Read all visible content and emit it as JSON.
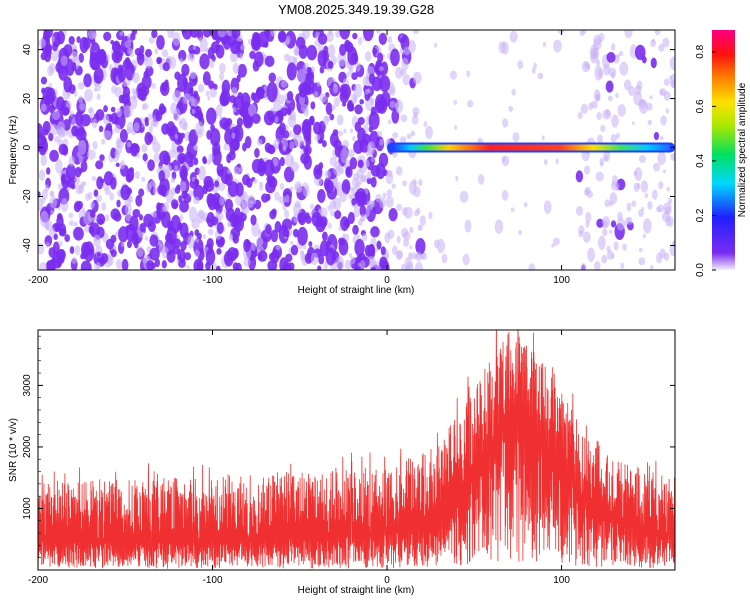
{
  "title": "YM08.2025.349.19.39.G28",
  "colors": {
    "scatter_purple": "#7a2cf0",
    "scatter_light": "#c9b0f5",
    "snr_line": "#f03030"
  },
  "chart_data": [
    {
      "type": "heatmap",
      "name": "spectrogram",
      "xlabel": "Height of straight line (km)",
      "ylabel": "Frequency (Hz)",
      "xlim": [
        -200,
        165
      ],
      "ylim": [
        -50,
        48
      ],
      "xticks": [
        -200,
        -100,
        0,
        100
      ],
      "yticks": [
        -40,
        -20,
        0,
        20,
        40
      ],
      "signal_band": {
        "x_start": 0,
        "x_end": 165,
        "frequency_hz": 0
      },
      "colorbar": {
        "label": "Normalized spectral amplitude",
        "range": [
          0.0,
          0.88
        ],
        "ticks": [
          0.0,
          0.2,
          0.4,
          0.6,
          0.8
        ],
        "colormap": "rainbow (purple-blue-cyan-green-yellow-red-magenta)"
      }
    },
    {
      "type": "line",
      "name": "snr",
      "xlabel": "Height of straight line (km)",
      "ylabel": "SNR (10 * v/v)",
      "xlim": [
        -200,
        165
      ],
      "ylim": [
        0,
        3900
      ],
      "xticks": [
        -200,
        -100,
        0,
        100
      ],
      "yticks": [
        1000,
        2000,
        3000
      ],
      "envelope": {
        "x": [
          -200,
          -150,
          -100,
          -50,
          0,
          20,
          40,
          55,
          70,
          80,
          95,
          110,
          130,
          150,
          165
        ],
        "mean": [
          450,
          450,
          470,
          520,
          600,
          700,
          1100,
          1800,
          2500,
          2400,
          1800,
          1200,
          800,
          620,
          560
        ],
        "max": [
          1450,
          1500,
          1550,
          1600,
          1700,
          1900,
          2500,
          3300,
          3900,
          3800,
          3100,
          2500,
          1850,
          1600,
          1500
        ]
      }
    }
  ]
}
